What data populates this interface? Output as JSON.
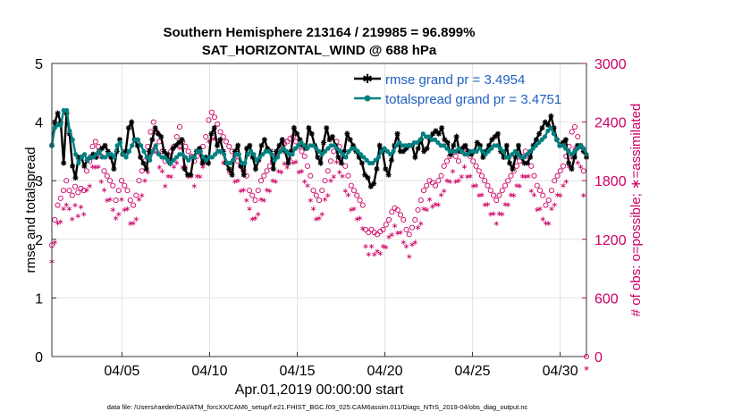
{
  "chart_data": {
    "type": "line",
    "title": "Southern Hemisphere 213164 / 219985 = 96.899%",
    "subtitle": "SAT_HORIZONTAL_WIND @ 688 hPa",
    "xlabel": "Apr.01,2019 00:00:00 start",
    "ylabel": "rmse and totalspread",
    "ylabel_right": "# of obs: o=possible; ∗=assimilated",
    "footer": "data file: /Users/raeder/DAI/ATM_forcXX/CAM6_setup/f.e21.FHIST_BGC.f09_025.CAM6assim.011/Diags_NTrS_2019-04/obs_diag_output.nc",
    "x_range": [
      1,
      31.5
    ],
    "ylim": [
      0,
      5
    ],
    "ylim_right": [
      0,
      3000
    ],
    "x_ticks": [
      {
        "x": 5,
        "label": "04/05"
      },
      {
        "x": 10,
        "label": "04/10"
      },
      {
        "x": 15,
        "label": "04/15"
      },
      {
        "x": 20,
        "label": "04/20"
      },
      {
        "x": 25,
        "label": "04/25"
      },
      {
        "x": 30,
        "label": "04/30"
      }
    ],
    "y_ticks": [
      "0",
      "1",
      "2",
      "3",
      "4",
      "5"
    ],
    "y_ticks_right": [
      "0",
      "600",
      "1200",
      "1800",
      "2400",
      "3000"
    ],
    "colors": {
      "rmse": "#000000",
      "spread": "#008080",
      "obs": "#cc0066",
      "legend_text": "#1f5fbf"
    },
    "series": [
      {
        "name": "rmse grand pr = 3.4954",
        "values": [
          3.6,
          4.0,
          4.15,
          4.0,
          3.3,
          4.15,
          3.8,
          3.25,
          3.05,
          3.4,
          3.4,
          3.25,
          3.35,
          3.4,
          3.45,
          3.4,
          3.5,
          3.55,
          3.6,
          3.5,
          3.4,
          3.2,
          3.5,
          3.7,
          3.45,
          3.5,
          3.9,
          4.0,
          3.7,
          3.6,
          3.4,
          3.3,
          3.2,
          3.5,
          3.7,
          3.9,
          3.8,
          3.75,
          3.5,
          3.45,
          3.3,
          3.55,
          3.6,
          3.65,
          3.7,
          3.2,
          3.1,
          3.1,
          3.4,
          3.5,
          3.55,
          3.3,
          3.4,
          3.3,
          3.8,
          3.9,
          3.6,
          3.7,
          3.5,
          3.3,
          3.2,
          3.1,
          3.5,
          3.6,
          3.25,
          3.1,
          3.55,
          3.6,
          3.4,
          3.2,
          3.35,
          3.6,
          3.7,
          3.55,
          3.5,
          3.2,
          3.5,
          3.6,
          3.7,
          3.5,
          3.3,
          3.5,
          3.9,
          3.8,
          3.7,
          3.6,
          3.55,
          3.9,
          3.8,
          3.6,
          3.4,
          3.3,
          3.65,
          3.9,
          3.7,
          3.75,
          3.6,
          3.4,
          3.3,
          3.5,
          3.8,
          3.7,
          3.6,
          3.5,
          3.4,
          3.3,
          3.1,
          3.05,
          2.9,
          2.95,
          3.2,
          3.6,
          3.5,
          3.2,
          3.1,
          3.35,
          3.6,
          3.8,
          3.5,
          3.5,
          3.55,
          3.6,
          3.6,
          3.4,
          3.55,
          3.7,
          3.5,
          3.55,
          3.7,
          3.8,
          3.85,
          3.8,
          3.9,
          3.7,
          3.65,
          3.45,
          3.6,
          3.75,
          3.5,
          3.55,
          3.6,
          3.5,
          3.45,
          3.5,
          3.65,
          3.6,
          3.4,
          3.5,
          3.6,
          3.7,
          3.75,
          3.8,
          3.5,
          3.4,
          3.6,
          3.3,
          3.2,
          3.4,
          3.6,
          3.4,
          3.3,
          3.3,
          3.4,
          3.6,
          3.7,
          3.8,
          3.9,
          4.0,
          3.95,
          4.1,
          3.9,
          3.7,
          3.6,
          3.65,
          3.7,
          3.3,
          3.2,
          3.4,
          3.6,
          3.6,
          3.5,
          3.4
        ]
      },
      {
        "name": "totalspread grand pr = 3.4751",
        "values": [
          3.6,
          3.9,
          3.95,
          3.95,
          4.2,
          4.2,
          3.85,
          3.7,
          3.45,
          3.3,
          3.4,
          3.45,
          3.35,
          3.4,
          3.4,
          3.45,
          3.5,
          3.4,
          3.4,
          3.45,
          3.45,
          3.4,
          3.6,
          3.65,
          3.45,
          3.4,
          3.5,
          3.6,
          3.7,
          3.7,
          3.6,
          3.5,
          3.4,
          3.35,
          3.5,
          3.6,
          3.45,
          3.4,
          3.4,
          3.35,
          3.3,
          3.35,
          3.4,
          3.45,
          3.45,
          3.4,
          3.35,
          3.4,
          3.4,
          3.5,
          3.5,
          3.4,
          3.35,
          3.4,
          3.4,
          3.45,
          3.5,
          3.5,
          3.45,
          3.3,
          3.3,
          3.35,
          3.45,
          3.45,
          3.3,
          3.3,
          3.45,
          3.5,
          3.45,
          3.35,
          3.4,
          3.45,
          3.5,
          3.5,
          3.45,
          3.35,
          3.4,
          3.5,
          3.55,
          3.5,
          3.45,
          3.45,
          3.55,
          3.6,
          3.65,
          3.6,
          3.55,
          3.6,
          3.6,
          3.55,
          3.5,
          3.45,
          3.5,
          3.55,
          3.6,
          3.6,
          3.55,
          3.5,
          3.45,
          3.4,
          3.5,
          3.55,
          3.55,
          3.5,
          3.45,
          3.4,
          3.35,
          3.3,
          3.3,
          3.35,
          3.4,
          3.5,
          3.55,
          3.5,
          3.45,
          3.5,
          3.6,
          3.65,
          3.6,
          3.6,
          3.6,
          3.6,
          3.65,
          3.65,
          3.7,
          3.8,
          3.75,
          3.75,
          3.7,
          3.7,
          3.65,
          3.6,
          3.6,
          3.55,
          3.5,
          3.5,
          3.5,
          3.55,
          3.5,
          3.45,
          3.45,
          3.5,
          3.5,
          3.5,
          3.55,
          3.5,
          3.45,
          3.5,
          3.55,
          3.6,
          3.6,
          3.55,
          3.5,
          3.4,
          3.4,
          3.45,
          3.5,
          3.45,
          3.4,
          3.4,
          3.45,
          3.5,
          3.55,
          3.6,
          3.65,
          3.7,
          3.75,
          3.85,
          3.9,
          3.8,
          3.7,
          3.6,
          3.6,
          3.55,
          3.5,
          3.45,
          3.5,
          3.55,
          3.6,
          3.55,
          3.45
        ]
      }
    ],
    "obs_possible": [
      1140,
      1400,
      1550,
      1620,
      1700,
      1800,
      1700,
      1650,
      1740,
      1680,
      1720,
      1700,
      1900,
      2000,
      2150,
      2200,
      2150,
      2050,
      1900,
      1850,
      1800,
      1750,
      1600,
      1700,
      1800,
      1750,
      1700,
      1600,
      1550,
      1650,
      1800,
      1900,
      2000,
      2150,
      2300,
      2400,
      2300,
      2200,
      2100,
      2000,
      2050,
      2100,
      2150,
      2250,
      2350,
      2200,
      2150,
      2100,
      2050,
      2000,
      2050,
      2100,
      2150,
      2250,
      2420,
      2500,
      2450,
      2380,
      2300,
      2250,
      2200,
      2150,
      2100,
      2050,
      2000,
      1950,
      1900,
      1850,
      1700,
      1650,
      1600,
      1700,
      1800,
      1850,
      1900,
      1950,
      2000,
      2050,
      2100,
      2150,
      2180,
      2200,
      2230,
      2250,
      2200,
      2150,
      2100,
      2050,
      1950,
      1850,
      1700,
      1650,
      1600,
      1700,
      1800,
      1900,
      2000,
      2100,
      2200,
      2150,
      2050,
      1950,
      1850,
      1750,
      1700,
      1650,
      1600,
      1550,
      1300,
      1270,
      1300,
      1270,
      1250,
      1280,
      1300,
      1350,
      1400,
      1480,
      1520,
      1500,
      1450,
      1400,
      1300,
      1250,
      1320,
      1400,
      1500,
      1600,
      1700,
      1750,
      1800,
      1780,
      1750,
      1800,
      1850,
      1950,
      2000,
      2050,
      2100,
      2050,
      2000,
      2100,
      2150,
      2100,
      2050,
      2000,
      1950,
      1900,
      1850,
      1800,
      1750,
      1700,
      1650,
      1600,
      1650,
      1700,
      1750,
      1800,
      1850,
      1900,
      1950,
      2000,
      2050,
      2100,
      2050,
      1950,
      1850,
      1750,
      1700,
      1650,
      1550,
      1600,
      1700,
      1800,
      1850,
      1900,
      1950,
      2050,
      2150,
      2300,
      2350,
      2250,
      2150,
      1900,
      0
    ]
  }
}
